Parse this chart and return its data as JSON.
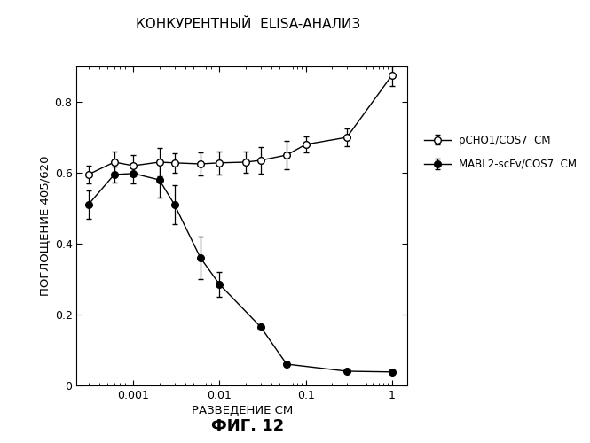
{
  "title": "КОНКУРЕНТНЫЙ  ELISA-АНАЛИЗ",
  "xlabel": "РАЗВЕДЕНИЕ СМ",
  "ylabel": "ПОГЛОЩЕНИЕ 405/620",
  "caption": "ФИГ. 12",
  "ylim": [
    0,
    0.9
  ],
  "yticks": [
    0,
    0.2,
    0.4,
    0.6,
    0.8
  ],
  "series1": {
    "label": "pCHO1/COS7  СМ",
    "x": [
      0.0003,
      0.0006,
      0.001,
      0.002,
      0.003,
      0.006,
      0.01,
      0.02,
      0.03,
      0.06,
      0.1,
      0.3,
      1.0
    ],
    "y": [
      0.595,
      0.63,
      0.62,
      0.63,
      0.628,
      0.625,
      0.628,
      0.63,
      0.635,
      0.65,
      0.68,
      0.7,
      0.875
    ],
    "yerr": [
      0.025,
      0.03,
      0.03,
      0.04,
      0.028,
      0.033,
      0.033,
      0.03,
      0.038,
      0.04,
      0.022,
      0.025,
      0.03
    ]
  },
  "series2": {
    "label": "MABL2-scFv/COS7  СМ",
    "x": [
      0.0003,
      0.0006,
      0.001,
      0.002,
      0.003,
      0.006,
      0.01,
      0.03,
      0.06,
      0.3,
      1.0
    ],
    "y": [
      0.51,
      0.595,
      0.598,
      0.58,
      0.51,
      0.36,
      0.285,
      0.165,
      0.06,
      0.04,
      0.038
    ],
    "yerr": [
      0.04,
      0.022,
      0.028,
      0.05,
      0.055,
      0.06,
      0.035,
      0.008,
      0.006,
      0.004,
      0.004
    ]
  },
  "background_color": "#ffffff"
}
